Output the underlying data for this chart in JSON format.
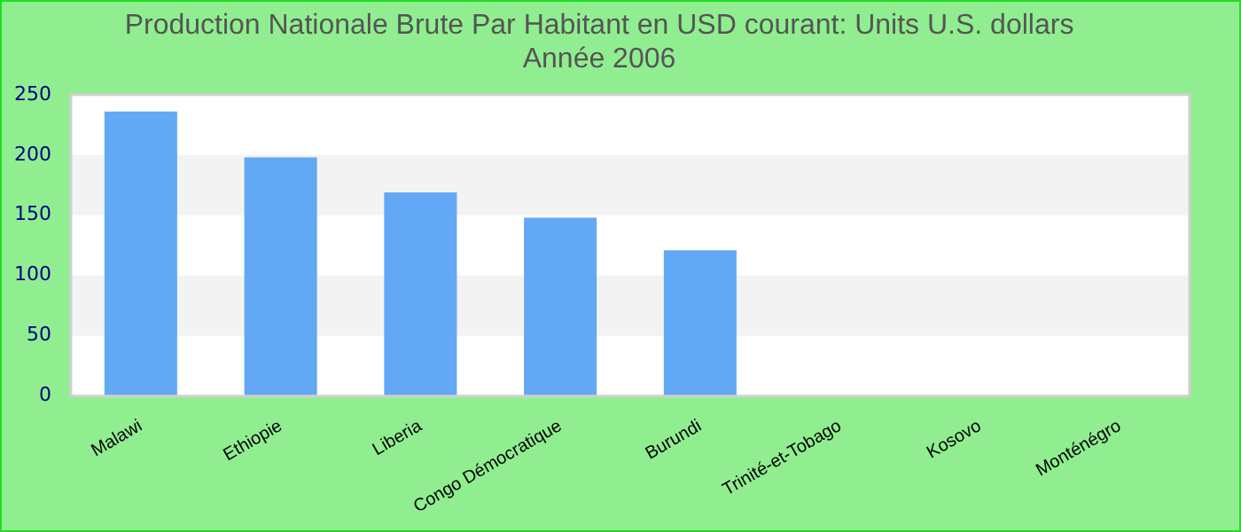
{
  "chart_data": {
    "type": "bar",
    "title": "Production Nationale Brute Par Habitant en USD courant: Units U.S. dollars",
    "subtitle": "Année 2006",
    "categories": [
      "Malawi",
      "Ethiopie",
      "Liberia",
      "Congo Démocratique",
      "Burundi",
      "Trinité-et-Tobago",
      "Kosovo",
      "Monténégro"
    ],
    "values": [
      236,
      198,
      169,
      148,
      121,
      null,
      null,
      null
    ],
    "color": "#62a8f5",
    "ylim": [
      0,
      250
    ],
    "yticks": [
      0,
      50,
      100,
      150,
      200,
      250
    ]
  }
}
